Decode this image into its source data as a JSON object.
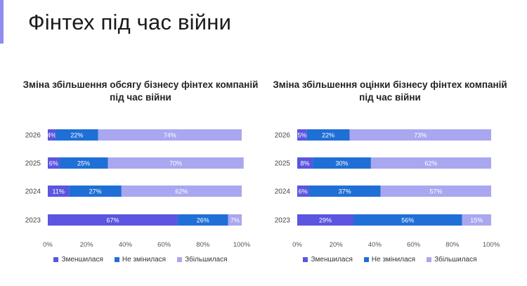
{
  "page": {
    "title": "Фінтех під час війни"
  },
  "colors": {
    "decreased": "#5b55e0",
    "unchanged": "#1f6fd6",
    "increased": "#a9a7f0",
    "accent": "#8f8df0"
  },
  "chart_data": [
    {
      "type": "bar",
      "orientation": "horizontal",
      "stacked": true,
      "title_line1": "Зміна збільшення обсягу бізнесу фінтех компаній",
      "title_line2": "під час війни",
      "categories": [
        "2026",
        "2025",
        "2024",
        "2023"
      ],
      "series": [
        {
          "name": "Зменшилася",
          "values": [
            4,
            6,
            11,
            67
          ],
          "labels": [
            "4%",
            "6%",
            "11%",
            "67%"
          ]
        },
        {
          "name": "Не змінилася",
          "values": [
            22,
            25,
            27,
            26
          ],
          "labels": [
            "22%",
            "25%",
            "27%",
            "26%"
          ]
        },
        {
          "name": "Збільшилася",
          "values": [
            74,
            70,
            62,
            7
          ],
          "labels": [
            "74%",
            "70%",
            "62%",
            "7%"
          ]
        }
      ],
      "xlim": [
        0,
        100
      ],
      "xticks": [
        "0%",
        "20%",
        "40%",
        "60%",
        "80%",
        "100%"
      ],
      "grid": false,
      "legend_position": "bottom"
    },
    {
      "type": "bar",
      "orientation": "horizontal",
      "stacked": true,
      "title_line1": "Зміна збільшення оцінки бізнесу фінтех компаній",
      "title_line2": "під час війни",
      "categories": [
        "2026",
        "2025",
        "2024",
        "2023"
      ],
      "series": [
        {
          "name": "Зменшилася",
          "values": [
            5,
            8,
            6,
            29
          ],
          "labels": [
            "5%",
            "8%",
            "6%",
            "29%"
          ]
        },
        {
          "name": "Не змінилася",
          "values": [
            22,
            30,
            37,
            56
          ],
          "labels": [
            "22%",
            "30%",
            "37%",
            "56%"
          ]
        },
        {
          "name": "Збільшилася",
          "values": [
            73,
            62,
            57,
            15
          ],
          "labels": [
            "73%",
            "62%",
            "57%",
            "15%"
          ]
        }
      ],
      "xlim": [
        0,
        100
      ],
      "xticks": [
        "0%",
        "20%",
        "40%",
        "60%",
        "80%",
        "100%"
      ],
      "grid": false,
      "legend_position": "bottom"
    }
  ]
}
